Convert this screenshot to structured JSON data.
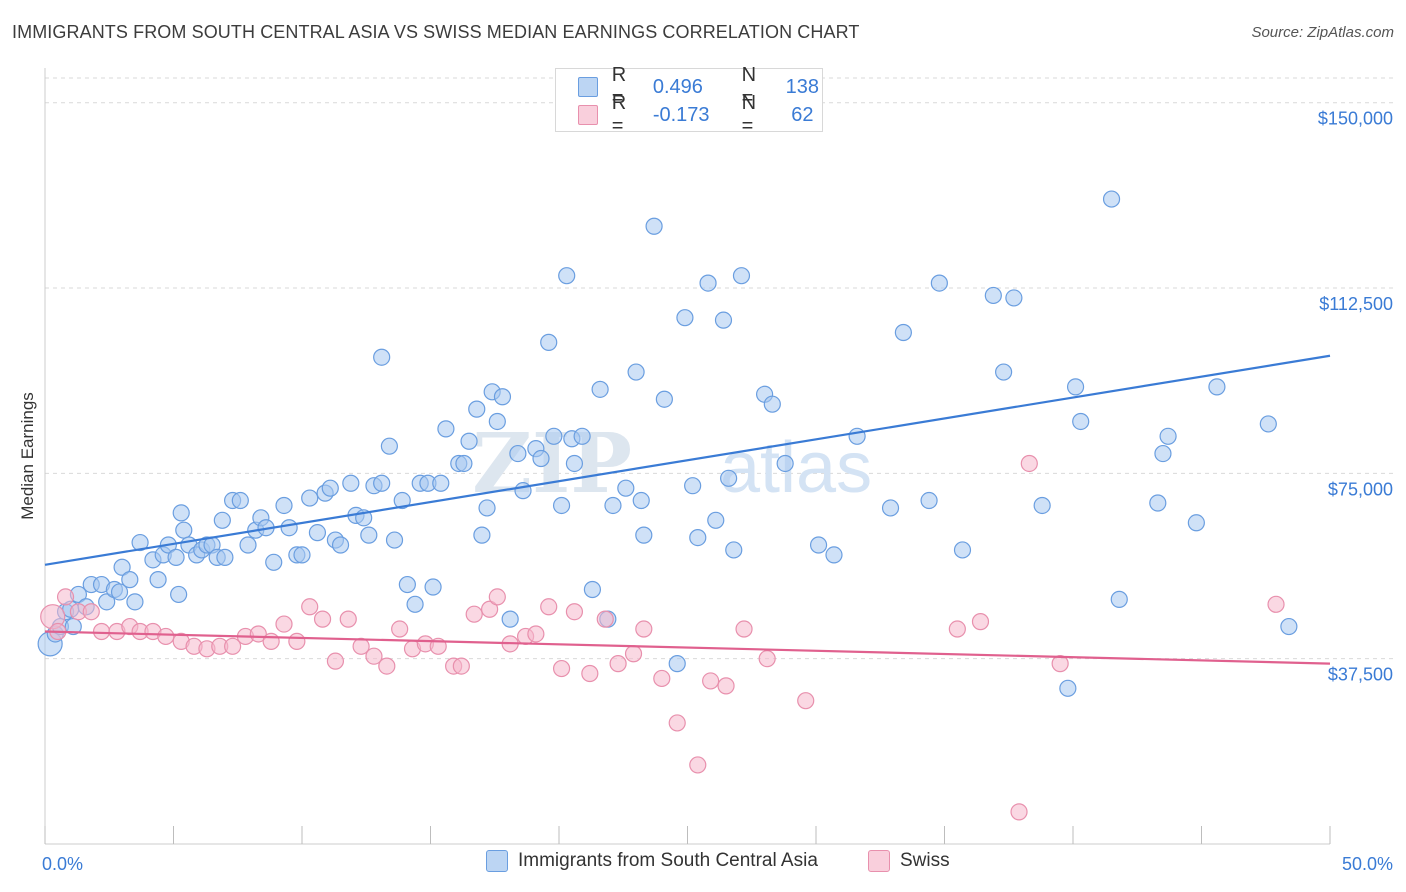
{
  "title": "IMMIGRANTS FROM SOUTH CENTRAL ASIA VS SWISS MEDIAN EARNINGS CORRELATION CHART",
  "source": "Source: ZipAtlas.com",
  "watermark": {
    "zip": "ZIP",
    "atlas": "atlas"
  },
  "colors": {
    "blue": "#3a7bd5",
    "blue_fill": "#a8c8f0",
    "blue_stroke": "#6a9ee0",
    "pink": "#e0608e",
    "pink_fill": "#f5b8cc",
    "pink_stroke": "#e890ad",
    "grid": "#d9d9d9"
  },
  "legend": {
    "rows": [
      {
        "r_label": "R =",
        "r_value": "0.496",
        "n_label": "N =",
        "n_value": "138"
      },
      {
        "r_label": "R =",
        "r_value": "-0.173",
        "n_label": "N =",
        "n_value": "62"
      }
    ]
  },
  "bottom_legend": {
    "blue": "Immigrants from South Central Asia",
    "pink": "Swiss"
  },
  "chart_data": {
    "type": "scatter",
    "title": "IMMIGRANTS FROM SOUTH CENTRAL ASIA VS SWISS MEDIAN EARNINGS CORRELATION CHART",
    "xlabel": "",
    "ylabel": "Median Earnings",
    "xlim": [
      0,
      50
    ],
    "ylim": [
      0,
      155000
    ],
    "x_tick_labels": [
      "0.0%",
      "50.0%"
    ],
    "y_ticks": [
      37500,
      75000,
      112500,
      150000
    ],
    "y_tick_labels": [
      "$37,500",
      "$75,000",
      "$112,500",
      "$150,000"
    ],
    "series": [
      {
        "name": "Immigrants from South Central Asia",
        "color": "blue",
        "trend": {
          "x": [
            0,
            50
          ],
          "y": [
            56500,
            98800
          ]
        },
        "points": [
          [
            0.2,
            40500
          ],
          [
            0.4,
            42500
          ],
          [
            0.6,
            44000
          ],
          [
            0.8,
            47000
          ],
          [
            1.0,
            47500
          ],
          [
            1.1,
            44000
          ],
          [
            1.3,
            50500
          ],
          [
            1.6,
            48000
          ],
          [
            1.8,
            52500
          ],
          [
            2.2,
            52500
          ],
          [
            2.4,
            49000
          ],
          [
            2.7,
            51500
          ],
          [
            2.9,
            51000
          ],
          [
            3.0,
            56000
          ],
          [
            3.3,
            53500
          ],
          [
            3.5,
            49000
          ],
          [
            3.7,
            61000
          ],
          [
            4.2,
            57500
          ],
          [
            4.4,
            53500
          ],
          [
            4.6,
            58500
          ],
          [
            4.8,
            60500
          ],
          [
            5.1,
            58000
          ],
          [
            5.2,
            50500
          ],
          [
            5.3,
            67000
          ],
          [
            5.4,
            63500
          ],
          [
            5.6,
            60500
          ],
          [
            5.9,
            58500
          ],
          [
            6.1,
            59500
          ],
          [
            6.3,
            60500
          ],
          [
            6.5,
            60500
          ],
          [
            6.7,
            58000
          ],
          [
            6.9,
            65500
          ],
          [
            7.0,
            58000
          ],
          [
            7.3,
            69500
          ],
          [
            7.6,
            69500
          ],
          [
            7.9,
            60500
          ],
          [
            8.2,
            63500
          ],
          [
            8.4,
            66000
          ],
          [
            8.6,
            64000
          ],
          [
            8.9,
            57000
          ],
          [
            9.3,
            68500
          ],
          [
            9.5,
            64000
          ],
          [
            9.8,
            58500
          ],
          [
            10.0,
            58500
          ],
          [
            10.3,
            70000
          ],
          [
            10.6,
            63000
          ],
          [
            10.9,
            71000
          ],
          [
            11.1,
            72000
          ],
          [
            11.3,
            61500
          ],
          [
            11.5,
            60500
          ],
          [
            11.9,
            73000
          ],
          [
            12.1,
            66500
          ],
          [
            12.4,
            66000
          ],
          [
            12.6,
            62500
          ],
          [
            12.8,
            72500
          ],
          [
            13.1,
            73000
          ],
          [
            13.1,
            98500
          ],
          [
            13.4,
            80500
          ],
          [
            13.6,
            61500
          ],
          [
            13.9,
            69500
          ],
          [
            14.1,
            52500
          ],
          [
            14.4,
            48500
          ],
          [
            14.6,
            73000
          ],
          [
            14.9,
            73000
          ],
          [
            15.1,
            52000
          ],
          [
            15.4,
            73000
          ],
          [
            15.6,
            84000
          ],
          [
            16.1,
            77000
          ],
          [
            16.3,
            77000
          ],
          [
            16.5,
            81500
          ],
          [
            16.8,
            88000
          ],
          [
            17.0,
            62500
          ],
          [
            17.2,
            68000
          ],
          [
            17.4,
            91500
          ],
          [
            17.6,
            85500
          ],
          [
            17.8,
            90500
          ],
          [
            18.1,
            45500
          ],
          [
            18.4,
            79000
          ],
          [
            18.6,
            71500
          ],
          [
            19.1,
            80000
          ],
          [
            19.3,
            78000
          ],
          [
            19.6,
            101500
          ],
          [
            19.8,
            82500
          ],
          [
            20.1,
            68500
          ],
          [
            20.3,
            115000
          ],
          [
            20.5,
            82000
          ],
          [
            20.6,
            77000
          ],
          [
            20.9,
            82500
          ],
          [
            21.3,
            51500
          ],
          [
            21.6,
            92000
          ],
          [
            21.9,
            45500
          ],
          [
            22.1,
            68500
          ],
          [
            22.6,
            72000
          ],
          [
            23.0,
            95500
          ],
          [
            23.2,
            69500
          ],
          [
            23.3,
            62500
          ],
          [
            23.7,
            125000
          ],
          [
            24.1,
            90000
          ],
          [
            24.6,
            36500
          ],
          [
            24.9,
            106500
          ],
          [
            25.2,
            72500
          ],
          [
            25.4,
            62000
          ],
          [
            25.8,
            113500
          ],
          [
            26.1,
            65500
          ],
          [
            26.4,
            106000
          ],
          [
            26.6,
            74000
          ],
          [
            26.8,
            59500
          ],
          [
            27.1,
            115000
          ],
          [
            28.0,
            91000
          ],
          [
            28.3,
            89000
          ],
          [
            28.8,
            77000
          ],
          [
            30.1,
            60500
          ],
          [
            30.7,
            58500
          ],
          [
            31.6,
            82500
          ],
          [
            32.9,
            68000
          ],
          [
            33.4,
            103500
          ],
          [
            34.4,
            69500
          ],
          [
            34.8,
            113500
          ],
          [
            35.7,
            59500
          ],
          [
            36.9,
            111000
          ],
          [
            37.3,
            95500
          ],
          [
            37.7,
            110500
          ],
          [
            38.8,
            68500
          ],
          [
            39.8,
            31500
          ],
          [
            40.1,
            92500
          ],
          [
            40.3,
            85500
          ],
          [
            41.5,
            130500
          ],
          [
            41.8,
            49500
          ],
          [
            43.3,
            69000
          ],
          [
            43.5,
            79000
          ],
          [
            43.7,
            82500
          ],
          [
            44.8,
            65000
          ],
          [
            45.6,
            92500
          ],
          [
            47.6,
            85000
          ],
          [
            48.4,
            44000
          ]
        ]
      },
      {
        "name": "Swiss",
        "color": "pink",
        "trend": {
          "x": [
            0,
            50
          ],
          "y": [
            43000,
            36500
          ]
        },
        "points": [
          [
            0.3,
            46000
          ],
          [
            0.5,
            43000
          ],
          [
            0.8,
            50000
          ],
          [
            1.3,
            47000
          ],
          [
            1.8,
            47000
          ],
          [
            2.2,
            43000
          ],
          [
            2.8,
            43000
          ],
          [
            3.3,
            44000
          ],
          [
            3.7,
            43000
          ],
          [
            4.2,
            43000
          ],
          [
            4.7,
            42000
          ],
          [
            5.3,
            41000
          ],
          [
            5.8,
            40000
          ],
          [
            6.3,
            39500
          ],
          [
            6.8,
            40000
          ],
          [
            7.3,
            40000
          ],
          [
            7.8,
            42000
          ],
          [
            8.3,
            42500
          ],
          [
            8.8,
            41000
          ],
          [
            9.3,
            44500
          ],
          [
            9.8,
            41000
          ],
          [
            10.3,
            48000
          ],
          [
            10.8,
            45500
          ],
          [
            11.3,
            37000
          ],
          [
            11.8,
            45500
          ],
          [
            12.3,
            40000
          ],
          [
            12.8,
            38000
          ],
          [
            13.3,
            36000
          ],
          [
            13.8,
            43500
          ],
          [
            14.3,
            39500
          ],
          [
            14.8,
            40500
          ],
          [
            15.3,
            40000
          ],
          [
            15.9,
            36000
          ],
          [
            16.2,
            36000
          ],
          [
            16.7,
            46500
          ],
          [
            17.3,
            47500
          ],
          [
            17.6,
            50000
          ],
          [
            18.1,
            40500
          ],
          [
            18.7,
            42000
          ],
          [
            19.1,
            42500
          ],
          [
            19.6,
            48000
          ],
          [
            20.1,
            35500
          ],
          [
            20.6,
            47000
          ],
          [
            21.2,
            34500
          ],
          [
            21.8,
            45500
          ],
          [
            22.3,
            36500
          ],
          [
            22.9,
            38500
          ],
          [
            23.3,
            43500
          ],
          [
            24.0,
            33500
          ],
          [
            24.6,
            24500
          ],
          [
            25.4,
            16000
          ],
          [
            25.9,
            33000
          ],
          [
            26.5,
            32000
          ],
          [
            27.2,
            43500
          ],
          [
            28.1,
            37500
          ],
          [
            29.6,
            29000
          ],
          [
            35.5,
            43500
          ],
          [
            36.4,
            45000
          ],
          [
            37.9,
            6500
          ],
          [
            38.3,
            77000
          ],
          [
            39.5,
            36500
          ],
          [
            47.9,
            48500
          ]
        ]
      }
    ]
  }
}
